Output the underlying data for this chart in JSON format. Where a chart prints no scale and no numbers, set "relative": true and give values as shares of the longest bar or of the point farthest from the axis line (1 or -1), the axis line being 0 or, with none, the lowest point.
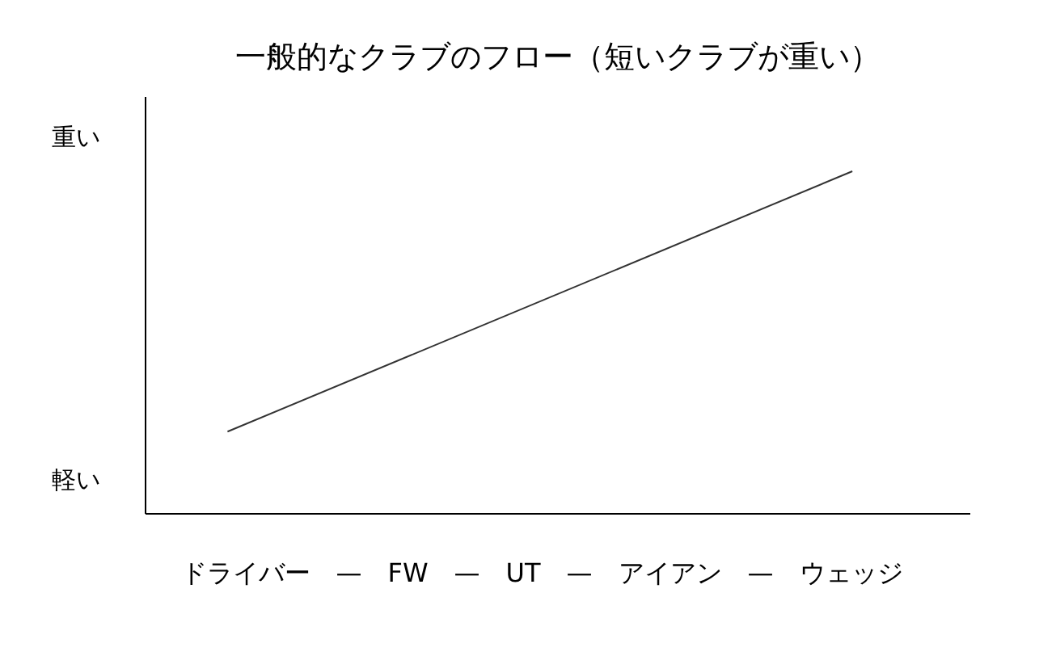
{
  "chart_data": {
    "type": "line",
    "title": "一般的なクラブのフロー（短いクラブが重い）",
    "xlabel": "ドライバー　—　FW　—　UT　—　アイアン　—　ウェッジ",
    "annotations": [
      "重い",
      "軽い"
    ],
    "categories": [
      null,
      null
    ],
    "relative": true,
    "series": [
      {
        "color": "#333333",
        "values": [
          0.24,
          1
        ]
      }
    ],
    "grid": false,
    "marker": "none",
    "line_style": "solid"
  }
}
